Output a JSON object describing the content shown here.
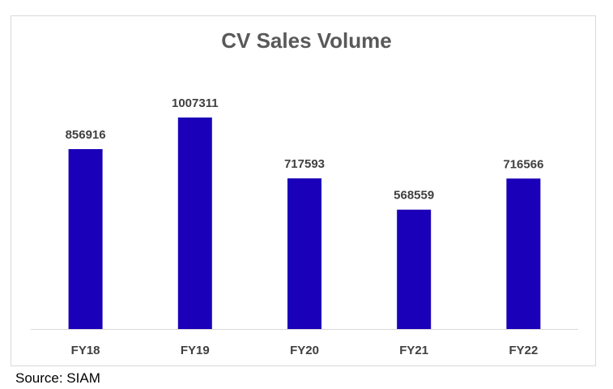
{
  "chart_data": {
    "type": "bar",
    "title": "CV Sales Volume",
    "categories": [
      "FY18",
      "FY19",
      "FY20",
      "FY21",
      "FY22"
    ],
    "values": [
      856916,
      1007311,
      717593,
      568559,
      716566
    ],
    "xlabel": "",
    "ylabel": "",
    "ylim": [
      0,
      1007311
    ],
    "grid": false,
    "legend": "none",
    "bar_color": "#1a00b8",
    "label_color": "#404040",
    "axis_color": "#d9d9d9"
  },
  "source_note": "Source: SIAM"
}
